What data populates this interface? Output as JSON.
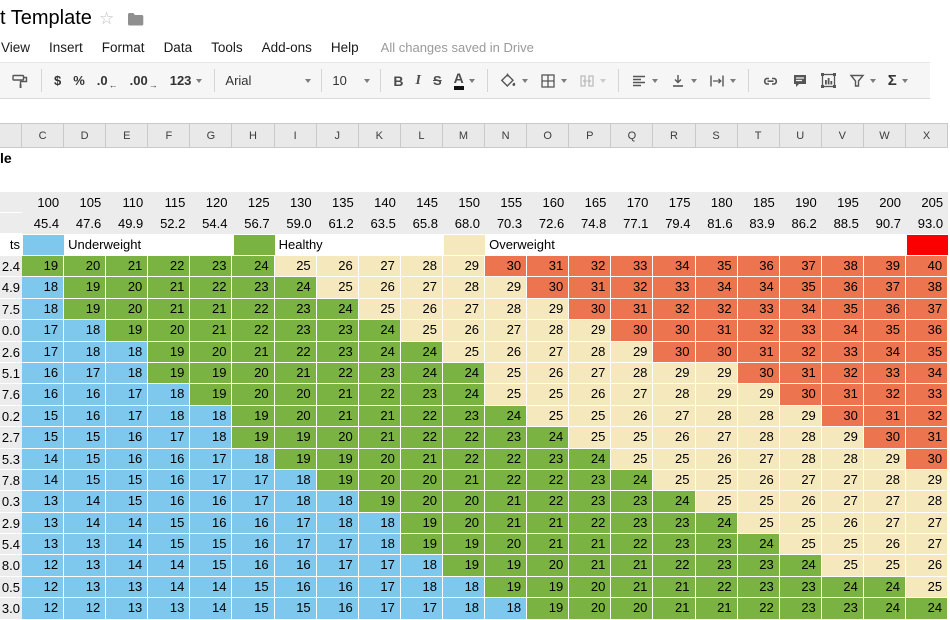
{
  "header": {
    "title_visible": "t Template",
    "menu_items": [
      "View",
      "Insert",
      "Format",
      "Data",
      "Tools",
      "Add-ons",
      "Help"
    ],
    "save_status": "All changes saved in Drive"
  },
  "toolbar": {
    "currency_label": "$",
    "percent_label": "%",
    "decrease_decimals_label": ".0",
    "decrease_decimals_arrow": "←",
    "increase_decimals_label": ".00",
    "increase_decimals_arrow": "→",
    "more_formats_label": "123",
    "font_family": "Arial",
    "font_size": "10",
    "bold_label": "B",
    "italic_label": "I",
    "strikethrough_label": "S",
    "text_color_label": "A",
    "functions_label": "Σ"
  },
  "icons": {
    "star": "☆",
    "folder": "folder-icon",
    "format_painter": "paint-roller-icon",
    "fill_color": "paint-bucket-icon",
    "borders": "borders-grid-icon",
    "merge_cells": "merge-cells-icon",
    "horizontal_align": "align-left-icon",
    "vertical_align": "vertical-align-icon",
    "text_wrap": "text-wrap-icon",
    "insert_link": "chain-link-icon",
    "insert_comment": "comment-icon",
    "insert_chart": "chart-icon",
    "filter": "funnel-icon"
  },
  "sheet": {
    "column_letters": [
      "C",
      "D",
      "E",
      "F",
      "G",
      "H",
      "I",
      "J",
      "K",
      "L",
      "M",
      "N",
      "O",
      "P",
      "Q",
      "R",
      "S",
      "T",
      "U",
      "V",
      "W",
      "X"
    ],
    "partial_sheet_title": "le",
    "partial_heights_label": "ts",
    "weights_lb": [
      "100",
      "105",
      "110",
      "115",
      "120",
      "125",
      "130",
      "135",
      "140",
      "145",
      "150",
      "155",
      "160",
      "165",
      "170",
      "175",
      "180",
      "185",
      "190",
      "195",
      "200",
      "205"
    ],
    "weights_kg": [
      "45.4",
      "47.6",
      "49.9",
      "52.2",
      "54.4",
      "56.7",
      "59.0",
      "61.2",
      "63.5",
      "65.8",
      "68.0",
      "70.3",
      "72.6",
      "74.8",
      "77.1",
      "79.4",
      "81.6",
      "83.9",
      "86.2",
      "88.5",
      "90.7",
      "93.0"
    ],
    "heights_visible": [
      "2.4",
      "4.9",
      "7.5",
      "0.0",
      "2.6",
      "5.1",
      "7.6",
      "0.2",
      "2.7",
      "5.3",
      "7.8",
      "0.3",
      "2.9",
      "5.4",
      "8.0",
      "0.5",
      "3.0"
    ],
    "legend_segments": [
      {
        "swatch_col": 0,
        "label": "Underweight",
        "color": "#7ec7ed",
        "name": "underweight"
      },
      {
        "swatch_col": 5,
        "label": "Healthy",
        "color": "#7bb342",
        "name": "healthy"
      },
      {
        "swatch_col": 10,
        "label": "Overweight",
        "color": "#f6e8bd",
        "name": "overweight"
      },
      {
        "swatch_col": 21,
        "label": "",
        "color": "#fb0000",
        "name": "obese"
      }
    ],
    "color_thresholds": {
      "underweight_max": 18,
      "healthy_max": 24,
      "overweight_max": 29
    },
    "cell_colors": {
      "underweight": "#7ec7ed",
      "healthy": "#7bb342",
      "overweight": "#f6e8bd",
      "obese": "#ec744e",
      "legend_red": "#fb0000"
    },
    "bmi_rows": [
      [
        19,
        20,
        21,
        22,
        23,
        24,
        25,
        26,
        27,
        28,
        29,
        30,
        31,
        32,
        33,
        34,
        35,
        36,
        37,
        38,
        39,
        40
      ],
      [
        18,
        19,
        20,
        21,
        22,
        23,
        24,
        25,
        26,
        27,
        28,
        29,
        30,
        31,
        32,
        33,
        34,
        34,
        35,
        36,
        37,
        38
      ],
      [
        18,
        19,
        20,
        21,
        21,
        22,
        23,
        24,
        25,
        26,
        27,
        28,
        29,
        30,
        31,
        32,
        32,
        33,
        34,
        35,
        36,
        37
      ],
      [
        17,
        18,
        19,
        20,
        21,
        22,
        23,
        23,
        24,
        25,
        26,
        27,
        28,
        29,
        30,
        30,
        31,
        32,
        33,
        34,
        35,
        36
      ],
      [
        17,
        18,
        18,
        19,
        20,
        21,
        22,
        23,
        24,
        24,
        25,
        26,
        27,
        28,
        29,
        30,
        30,
        31,
        32,
        33,
        34,
        35
      ],
      [
        16,
        17,
        18,
        19,
        19,
        20,
        21,
        22,
        23,
        24,
        24,
        25,
        26,
        27,
        28,
        29,
        29,
        30,
        31,
        32,
        33,
        34
      ],
      [
        16,
        16,
        17,
        18,
        19,
        20,
        20,
        21,
        22,
        23,
        24,
        25,
        25,
        26,
        27,
        28,
        29,
        29,
        30,
        31,
        32,
        33
      ],
      [
        15,
        16,
        17,
        18,
        18,
        19,
        20,
        21,
        21,
        22,
        23,
        24,
        25,
        25,
        26,
        27,
        28,
        28,
        29,
        30,
        31,
        32
      ],
      [
        15,
        15,
        16,
        17,
        18,
        19,
        19,
        20,
        21,
        22,
        22,
        23,
        24,
        25,
        25,
        26,
        27,
        28,
        28,
        29,
        30,
        31
      ],
      [
        14,
        15,
        16,
        16,
        17,
        18,
        19,
        19,
        20,
        21,
        22,
        22,
        23,
        24,
        25,
        25,
        26,
        27,
        28,
        28,
        29,
        30
      ],
      [
        14,
        15,
        15,
        16,
        17,
        17,
        18,
        19,
        20,
        20,
        21,
        22,
        22,
        23,
        24,
        25,
        25,
        26,
        27,
        27,
        28,
        29
      ],
      [
        13,
        14,
        15,
        16,
        16,
        17,
        18,
        18,
        19,
        20,
        20,
        21,
        22,
        23,
        23,
        24,
        25,
        25,
        26,
        27,
        27,
        28
      ],
      [
        13,
        14,
        14,
        15,
        16,
        16,
        17,
        18,
        18,
        19,
        20,
        21,
        21,
        22,
        23,
        23,
        24,
        25,
        25,
        26,
        27,
        27
      ],
      [
        13,
        13,
        14,
        15,
        15,
        16,
        17,
        17,
        18,
        19,
        19,
        20,
        21,
        21,
        22,
        23,
        23,
        24,
        25,
        25,
        26,
        27
      ],
      [
        12,
        13,
        14,
        14,
        15,
        16,
        16,
        17,
        17,
        18,
        19,
        19,
        20,
        21,
        21,
        22,
        23,
        23,
        24,
        25,
        25,
        26
      ],
      [
        12,
        13,
        13,
        14,
        14,
        15,
        16,
        16,
        17,
        18,
        18,
        19,
        19,
        20,
        21,
        21,
        22,
        23,
        23,
        24,
        24,
        25
      ],
      [
        12,
        12,
        13,
        13,
        14,
        15,
        15,
        16,
        17,
        17,
        18,
        18,
        19,
        20,
        20,
        21,
        21,
        22,
        23,
        23,
        24,
        24
      ]
    ]
  }
}
